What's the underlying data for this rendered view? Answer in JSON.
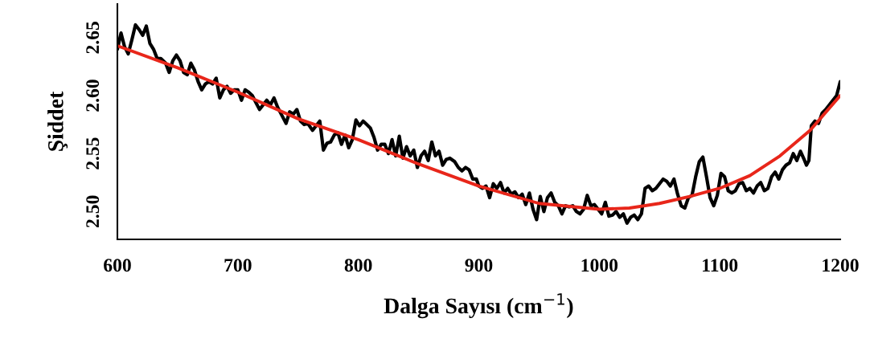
{
  "chart_data": {
    "type": "line",
    "xlabel": "Dalga Sayısı (cm$^{−1}$)",
    "ylabel": "Şiddet",
    "xlim": [
      600,
      1200
    ],
    "ylim": [
      2.476,
      2.679
    ],
    "xticks": [
      600,
      700,
      800,
      900,
      1000,
      1100,
      1200
    ],
    "yticks": [
      {
        "value": 2.5,
        "label": "2.50"
      },
      2.55,
      {
        "value": 2.6,
        "label": "2.60"
      },
      2.65
    ],
    "grid": false,
    "legend": false,
    "marker": "none",
    "line_style": "solid",
    "series": [
      {
        "color": "#000000",
        "x": [
          600,
          603,
          606,
          609,
          612,
          615,
          618,
          621,
          624,
          627,
          630,
          633,
          636,
          640,
          643,
          646,
          649,
          652,
          655,
          658,
          661,
          664,
          667,
          670,
          673,
          676,
          679,
          682,
          685,
          688,
          691,
          694,
          697,
          700,
          703,
          706,
          709,
          712,
          715,
          718,
          721,
          724,
          727,
          730,
          733,
          736,
          740,
          743,
          746,
          749,
          752,
          755,
          758,
          762,
          765,
          768,
          771,
          774,
          777,
          780,
          783,
          786,
          789,
          792,
          795,
          798,
          801,
          804,
          807,
          810,
          813,
          816,
          819,
          822,
          825,
          828,
          831,
          834,
          837,
          840,
          843,
          846,
          849,
          852,
          855,
          858,
          861,
          864,
          867,
          870,
          873,
          876,
          880,
          883,
          886,
          889,
          892,
          895,
          898,
          900,
          903,
          906,
          909,
          912,
          915,
          918,
          921,
          924,
          927,
          930,
          933,
          936,
          939,
          942,
          945,
          948,
          951,
          954,
          957,
          960,
          963,
          966,
          969,
          972,
          975,
          978,
          981,
          984,
          987,
          990,
          993,
          996,
          999,
          1002,
          1005,
          1008,
          1011,
          1014,
          1017,
          1020,
          1023,
          1026,
          1029,
          1032,
          1035,
          1038,
          1041,
          1044,
          1047,
          1050,
          1053,
          1056,
          1059,
          1062,
          1065,
          1068,
          1071,
          1074,
          1077,
          1080,
          1083,
          1086,
          1089,
          1092,
          1095,
          1098,
          1101,
          1104,
          1107,
          1110,
          1113,
          1116,
          1119,
          1122,
          1125,
          1128,
          1131,
          1134,
          1137,
          1140,
          1143,
          1146,
          1149,
          1152,
          1155,
          1158,
          1161,
          1164,
          1167,
          1170,
          1172,
          1174,
          1176,
          1179,
          1182,
          1185,
          1188,
          1191,
          1194,
          1197,
          1200
        ],
        "values": [
          2.64,
          2.654,
          2.642,
          2.636,
          2.648,
          2.661,
          2.657,
          2.652,
          2.66,
          2.645,
          2.64,
          2.632,
          2.632,
          2.628,
          2.62,
          2.63,
          2.635,
          2.63,
          2.62,
          2.618,
          2.628,
          2.622,
          2.612,
          2.605,
          2.61,
          2.612,
          2.61,
          2.615,
          2.598,
          2.605,
          2.608,
          2.602,
          2.605,
          2.605,
          2.596,
          2.605,
          2.603,
          2.6,
          2.594,
          2.588,
          2.592,
          2.596,
          2.592,
          2.598,
          2.59,
          2.584,
          2.576,
          2.586,
          2.584,
          2.588,
          2.578,
          2.575,
          2.576,
          2.57,
          2.574,
          2.578,
          2.553,
          2.559,
          2.56,
          2.566,
          2.568,
          2.558,
          2.566,
          2.555,
          2.562,
          2.579,
          2.574,
          2.578,
          2.575,
          2.572,
          2.564,
          2.553,
          2.558,
          2.558,
          2.55,
          2.562,
          2.548,
          2.565,
          2.546,
          2.556,
          2.548,
          2.553,
          2.538,
          2.548,
          2.552,
          2.544,
          2.56,
          2.548,
          2.552,
          2.54,
          2.545,
          2.546,
          2.543,
          2.538,
          2.535,
          2.538,
          2.536,
          2.528,
          2.528,
          2.522,
          2.52,
          2.522,
          2.512,
          2.524,
          2.52,
          2.525,
          2.516,
          2.52,
          2.515,
          2.517,
          2.512,
          2.515,
          2.506,
          2.516,
          2.502,
          2.493,
          2.513,
          2.5,
          2.512,
          2.516,
          2.508,
          2.505,
          2.498,
          2.505,
          2.504,
          2.505,
          2.5,
          2.498,
          2.502,
          2.514,
          2.505,
          2.506,
          2.502,
          2.498,
          2.508,
          2.496,
          2.497,
          2.5,
          2.495,
          2.498,
          2.49,
          2.495,
          2.497,
          2.493,
          2.498,
          2.52,
          2.522,
          2.518,
          2.52,
          2.524,
          2.528,
          2.526,
          2.522,
          2.528,
          2.515,
          2.505,
          2.503,
          2.512,
          2.514,
          2.53,
          2.543,
          2.547,
          2.53,
          2.512,
          2.505,
          2.514,
          2.533,
          2.53,
          2.518,
          2.516,
          2.518,
          2.524,
          2.525,
          2.518,
          2.52,
          2.516,
          2.522,
          2.525,
          2.518,
          2.52,
          2.53,
          2.534,
          2.528,
          2.536,
          2.54,
          2.542,
          2.55,
          2.544,
          2.552,
          2.545,
          2.54,
          2.544,
          2.574,
          2.578,
          2.576,
          2.585,
          2.588,
          2.592,
          2.596,
          2.6,
          2.612
        ]
      },
      {
        "color": "#e8261a",
        "x": [
          600,
          650,
          700,
          750,
          800,
          850,
          900,
          950,
          1000,
          1025,
          1050,
          1075,
          1100,
          1125,
          1150,
          1175,
          1200
        ],
        "values": [
          2.643,
          2.624,
          2.603,
          2.58,
          2.562,
          2.541,
          2.522,
          2.507,
          2.502,
          2.503,
          2.507,
          2.513,
          2.52,
          2.531,
          2.548,
          2.57,
          2.6
        ]
      }
    ]
  }
}
